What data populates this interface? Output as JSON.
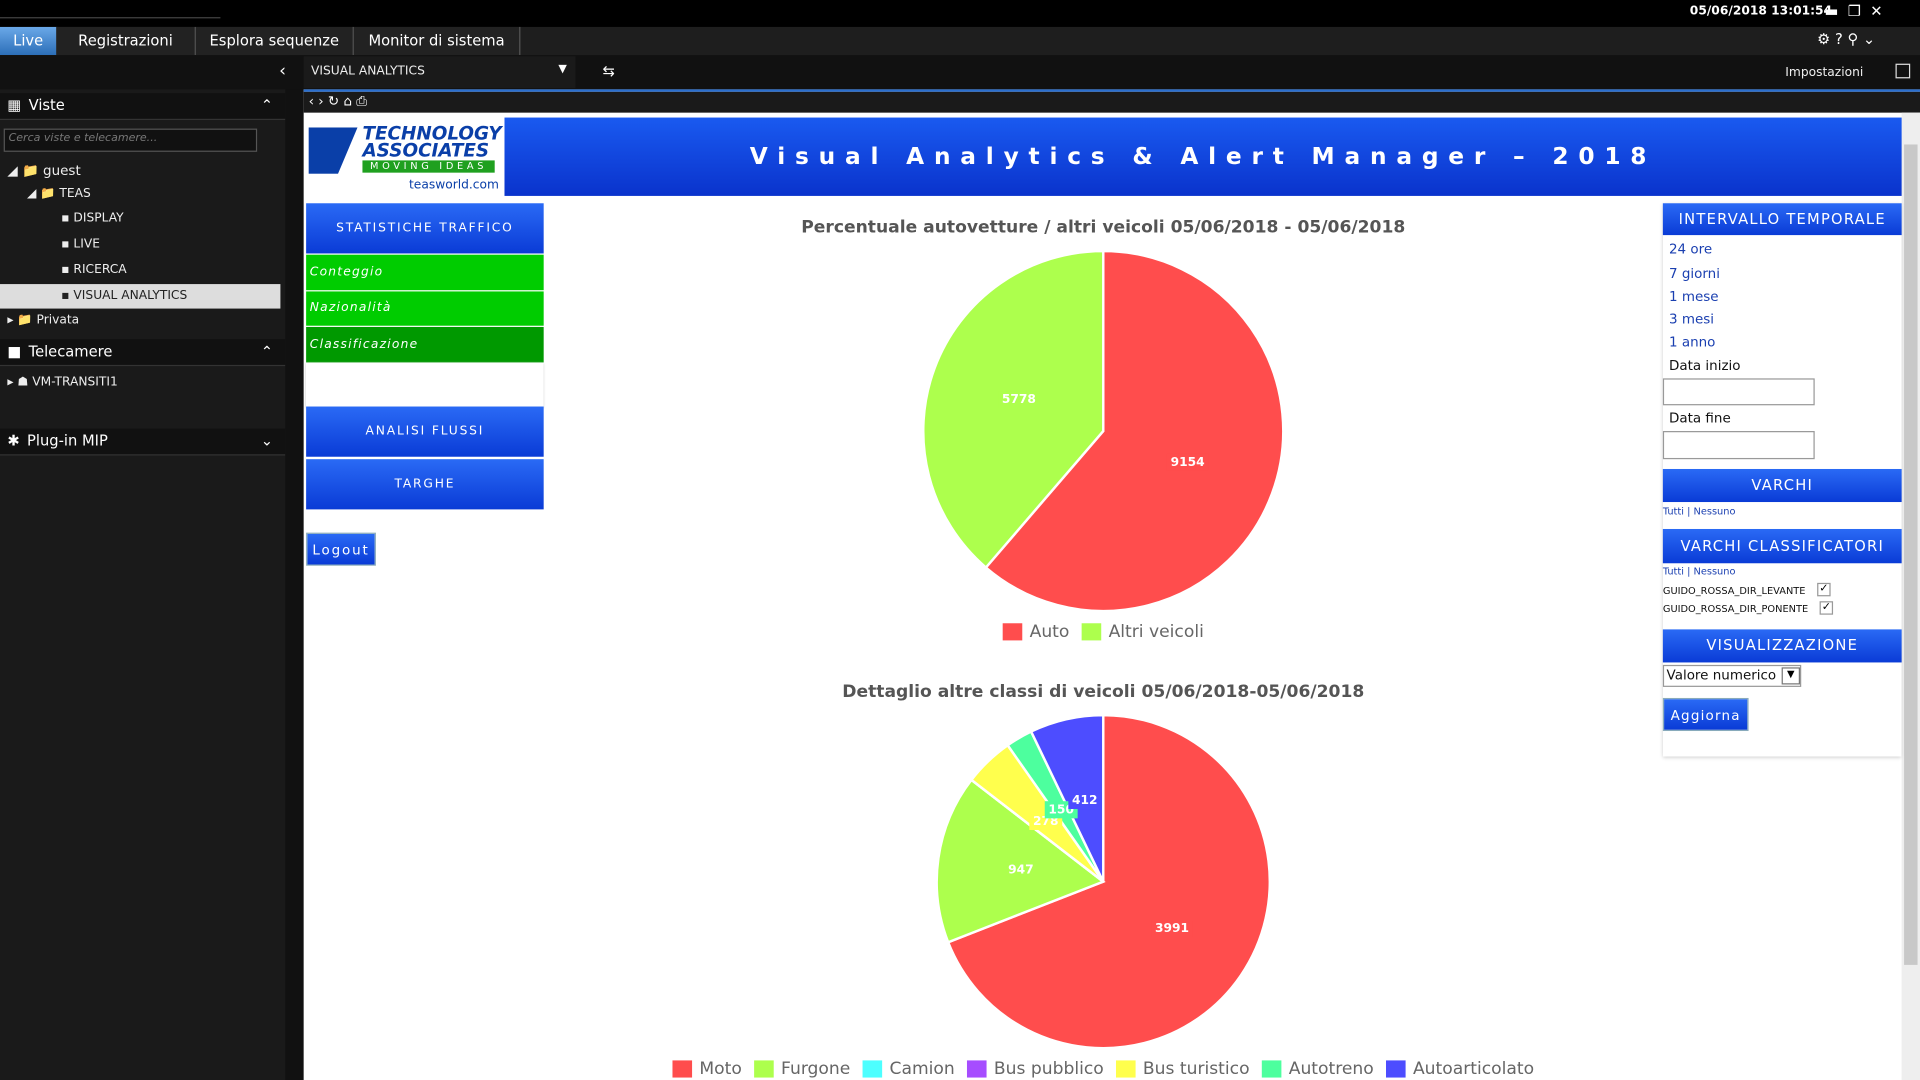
{
  "titlebar": {
    "datetime": "05/06/2018 13:01:54"
  },
  "tabs": [
    "Live",
    "Registrazioni",
    "Esplora sequenze",
    "Monitor di sistema"
  ],
  "toolbar": {
    "view": "VISUAL ANALYTICS",
    "settings": "Impostazioni"
  },
  "sidebar": {
    "views_title": "Viste",
    "search_placeholder": "Cerca viste e telecamere...",
    "tree": [
      "guest",
      "TEAS",
      "DISPLAY",
      "LIVE",
      "RICERCA",
      "VISUAL ANALYTICS",
      "Privata"
    ],
    "cameras_title": "Telecamere",
    "camera": "VM-TRANSITI1",
    "plugins_title": "Plug-in MIP"
  },
  "web": {
    "logo": {
      "line1": "TECHNOLOGY",
      "line2": "ASSOCIATES",
      "line3": "MOVING IDEAS",
      "url": "teasworld.com"
    },
    "banner": "Visual Analytics & Alert Manager – 2018",
    "menu": [
      "STATISTICHE TRAFFICO",
      "Conteggio",
      "Nazionalità",
      "Classificazione",
      "ANALISI FLUSSI",
      "TARGHE"
    ],
    "logout": "Logout",
    "panel": {
      "interval_title": "INTERVALLO TEMPORALE",
      "intervals": [
        "24 ore",
        "7 giorni",
        "1 mese",
        "3 mesi",
        "1 anno"
      ],
      "start_label": "Data inizio",
      "end_label": "Data fine",
      "gates_title": "VARCHI",
      "all_none": "Tutti | Nessuno",
      "classifier_title": "VARCHI CLASSIFICATORI",
      "classifier_all_none": "Tutti | Nessuno",
      "classifiers": [
        "GUIDO_ROSSA_DIR_LEVANTE",
        "GUIDO_ROSSA_DIR_PONENTE"
      ],
      "display_title": "VISUALIZZAZIONE",
      "display_option": "Valore numerico",
      "update": "Aggiorna"
    }
  },
  "chart_data": [
    {
      "type": "pie",
      "title": "Percentuale autovetture / altri veicoli 05/06/2018 - 05/06/2018",
      "categories": [
        "Auto",
        "Altri veicoli"
      ],
      "values": [
        9154,
        5778
      ],
      "colors": [
        "#ff4d4d",
        "#adff4d"
      ]
    },
    {
      "type": "pie",
      "title": "Dettaglio altre classi di veicoli 05/06/2018-05/06/2018",
      "categories": [
        "Moto",
        "Furgone",
        "Camion",
        "Bus pubblico",
        "Bus turistico",
        "Autotreno",
        "Autoarticolato"
      ],
      "values": [
        3991,
        947,
        0,
        0,
        278,
        150,
        412
      ],
      "colors": [
        "#ff4d4d",
        "#adff4d",
        "#4dffff",
        "#a64dff",
        "#ffff4d",
        "#4dff9e",
        "#4d4dff"
      ]
    }
  ]
}
